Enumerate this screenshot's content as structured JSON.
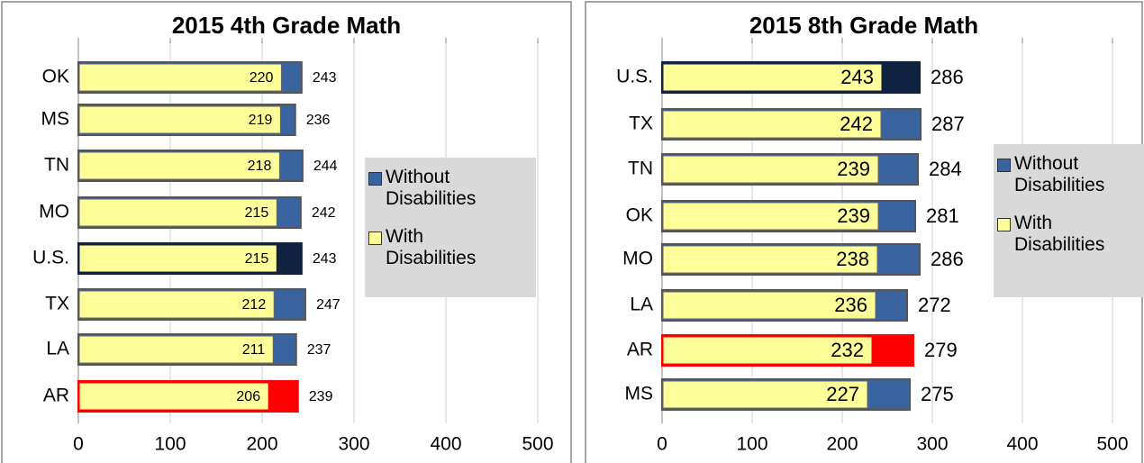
{
  "chart_data": [
    {
      "type": "bar",
      "title": "2015 4th Grade Math",
      "categories": [
        "OK",
        "MS",
        "TN",
        "MO",
        "U.S.",
        "TX",
        "LA",
        "AR"
      ],
      "series": [
        {
          "name": "Without Disabilities",
          "color": "#3a64a0",
          "colors": [
            "#3a64a0",
            "#3a64a0",
            "#3a64a0",
            "#3a64a0",
            "#0f2340",
            "#3a64a0",
            "#3a64a0",
            "#ff0000"
          ],
          "values": [
            243,
            236,
            244,
            242,
            243,
            247,
            237,
            239
          ]
        },
        {
          "name": "With Disabilities",
          "color": "#ffff99",
          "values": [
            220,
            219,
            218,
            215,
            215,
            212,
            211,
            206
          ]
        }
      ],
      "xlim": [
        0,
        500
      ],
      "xticks": [
        0,
        100,
        200,
        300,
        400,
        500
      ],
      "grid": true
    },
    {
      "type": "bar",
      "title": "2015 8th Grade Math",
      "categories": [
        "U.S.",
        "TX",
        "TN",
        "OK",
        "MO",
        "LA",
        "AR",
        "MS"
      ],
      "series": [
        {
          "name": "Without Disabilities",
          "color": "#3a64a0",
          "colors": [
            "#0f2340",
            "#3a64a0",
            "#3a64a0",
            "#3a64a0",
            "#3a64a0",
            "#3a64a0",
            "#ff0000",
            "#3a64a0"
          ],
          "values": [
            286,
            287,
            284,
            281,
            286,
            272,
            279,
            275
          ]
        },
        {
          "name": "With Disabilities",
          "color": "#ffff99",
          "values": [
            243,
            242,
            239,
            239,
            238,
            236,
            232,
            227
          ]
        }
      ],
      "xlim": [
        0,
        500
      ],
      "xticks": [
        0,
        100,
        200,
        300,
        400,
        500
      ],
      "grid": true
    }
  ]
}
